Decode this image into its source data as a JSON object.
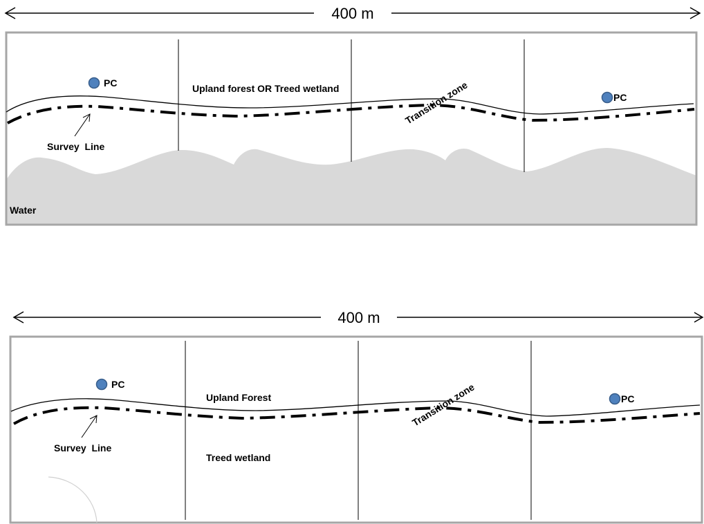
{
  "colors": {
    "frame": "#a6a6a6",
    "water": "#d9d9d9",
    "pc_point": "#4f81bd",
    "pc_point_outline": "#385d8a",
    "line": "#000000"
  },
  "top_panel": {
    "dimension_label": "400 m",
    "pc_label_1": "PC",
    "pc_label_2": "PC",
    "habitat_label": "Upland forest OR Treed wetland",
    "transition_label": "Transition zone",
    "survey_label": "Survey  Line",
    "water_label": "Water"
  },
  "bottom_panel": {
    "dimension_label": "400 m",
    "pc_label_1": "PC",
    "pc_label_2": "PC",
    "upland_label": "Upland Forest",
    "wetland_label": "Treed wetland",
    "transition_label": "Transition zone",
    "survey_label": "Survey  Line"
  }
}
